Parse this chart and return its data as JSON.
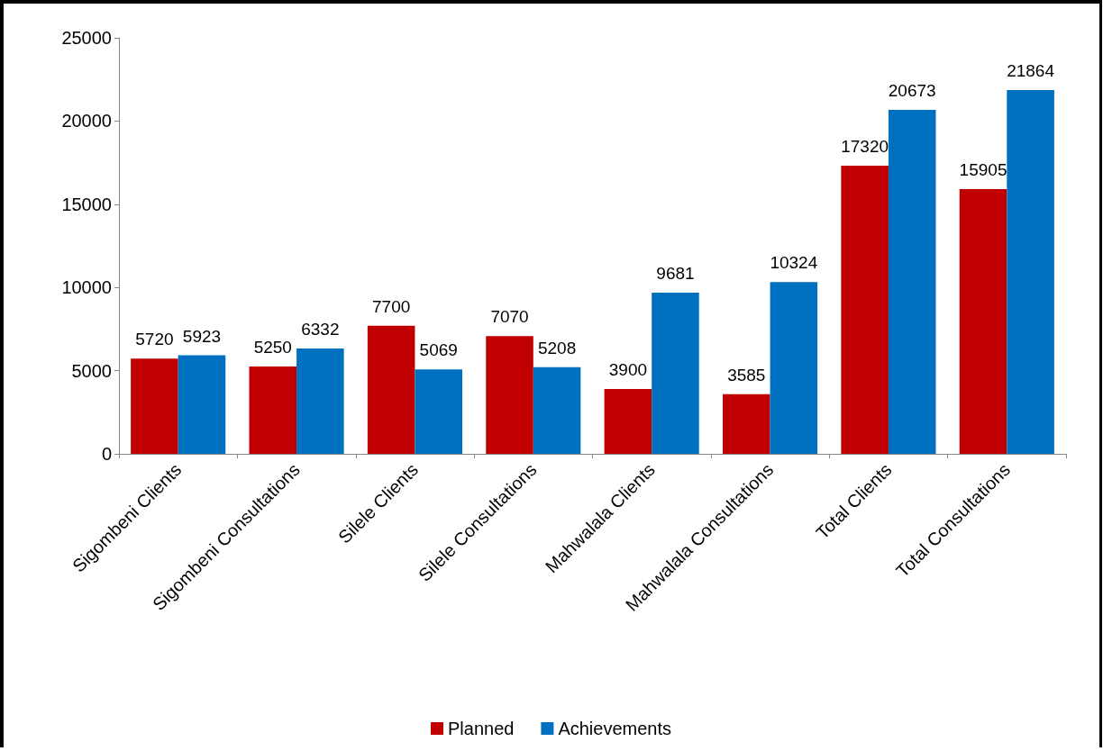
{
  "chart_data": {
    "type": "bar",
    "categories": [
      "Sigombeni Clients",
      "Sigombeni Consultations",
      "Silele Clients",
      "Silele Consultations",
      "Mahwalala Clients",
      "Mahwalala Consultations",
      "Total Clients",
      "Total Consultations"
    ],
    "series": [
      {
        "name": "Planned",
        "color": "#c00000",
        "values": [
          5720,
          5250,
          7700,
          7070,
          3900,
          3585,
          17320,
          15905
        ]
      },
      {
        "name": "Achievements",
        "color": "#0070c0",
        "values": [
          5923,
          6332,
          5069,
          5208,
          9681,
          10324,
          20673,
          21864
        ]
      }
    ],
    "ylim": [
      0,
      25000
    ],
    "yticks": [
      0,
      5000,
      10000,
      15000,
      20000,
      25000
    ],
    "grid": false,
    "legend": "bottom",
    "data_labels": true
  }
}
